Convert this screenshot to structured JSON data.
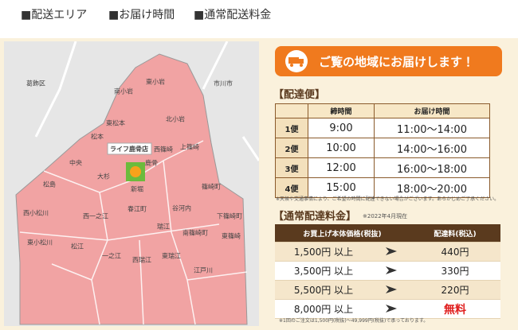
{
  "nav": [
    "■配送エリア",
    "■お届け時間",
    "■通常配送料金"
  ],
  "map": {
    "store": "ライフ鹿骨店",
    "labels": [
      "葛飾区",
      "市川市",
      "南小岩",
      "東小岩",
      "北小岩",
      "東松本",
      "松本",
      "西篠崎",
      "上篠崎",
      "鹿骨",
      "中央",
      "大杉",
      "篠崎町",
      "新堀",
      "松島",
      "西小松川",
      "西一之江",
      "春江町",
      "谷河内",
      "下篠崎町",
      "瑞江",
      "南篠崎町",
      "東篠崎",
      "東小松川",
      "松江",
      "一之江",
      "西瑞江",
      "東瑞江",
      "江戸川"
    ]
  },
  "banner": "ご覧の地域にお届けします！",
  "delivery": {
    "title": "【配達便】",
    "header": [
      "締時間",
      "お届け時間"
    ],
    "rows": [
      [
        "1便",
        "9:00",
        "11:00～14:00"
      ],
      [
        "2便",
        "10:00",
        "14:00～16:00"
      ],
      [
        "3便",
        "12:00",
        "16:00～18:00"
      ],
      [
        "4便",
        "15:00",
        "18:00～20:00"
      ]
    ],
    "note": "※天候や交通事情により、ご希望の時間に配達できない場合がございます。あらかじめご了承ください。"
  },
  "fees": {
    "title": "【通常配達料金】",
    "as_of": "※2022年4月現在",
    "header": [
      "お買上げ本体価格(税抜)",
      "配達料(税込)"
    ],
    "rows": [
      [
        "1,500円 以上",
        "440円"
      ],
      [
        "3,500円 以上",
        "330円"
      ],
      [
        "5,500円 以上",
        "220円"
      ],
      [
        "8,000円 以上",
        "無料"
      ]
    ],
    "note": "※1回のご注文は1,500円(税抜)～49,999円(税抜)で承っております。"
  }
}
